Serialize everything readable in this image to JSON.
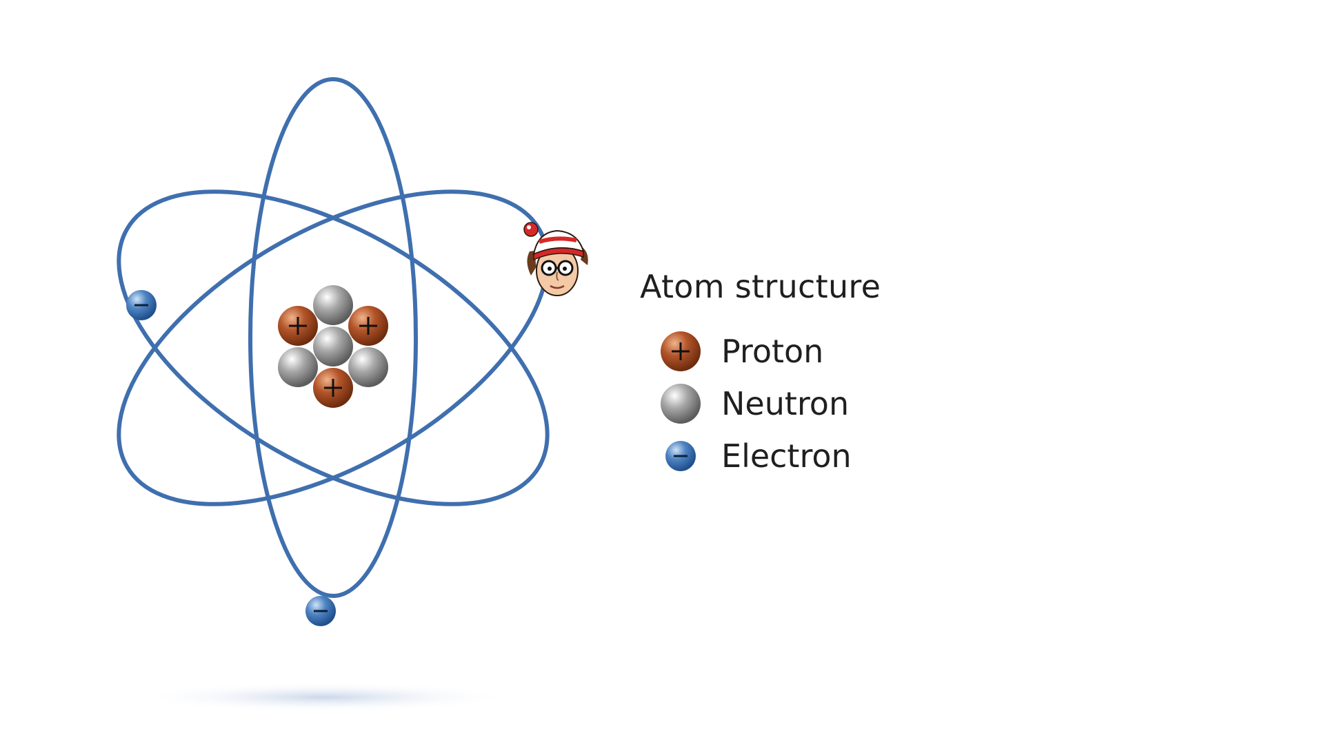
{
  "legend": {
    "title": "Atom structure",
    "items": [
      {
        "label": "Proton",
        "particle": "proton",
        "sign": "+"
      },
      {
        "label": "Neutron",
        "particle": "neutron",
        "sign": ""
      },
      {
        "label": "Electron",
        "particle": "electron",
        "sign": "−"
      }
    ]
  },
  "colors": {
    "orbit": "#3f6fae",
    "proton": "#a0481e",
    "neutron": "#9a9a9a",
    "electron": "#3f74b5",
    "text": "#1f1f1f",
    "shadow": "#9fb6d8"
  },
  "nucleus": {
    "protons": 3,
    "neutrons": 4
  },
  "electrons": {
    "count": 2,
    "sign": "−"
  },
  "mascot": {
    "icon": "waldo-face-icon",
    "description_colors": [
      "#d62828",
      "#ffffff",
      "#6b3b1f",
      "#f3c9a6"
    ]
  }
}
